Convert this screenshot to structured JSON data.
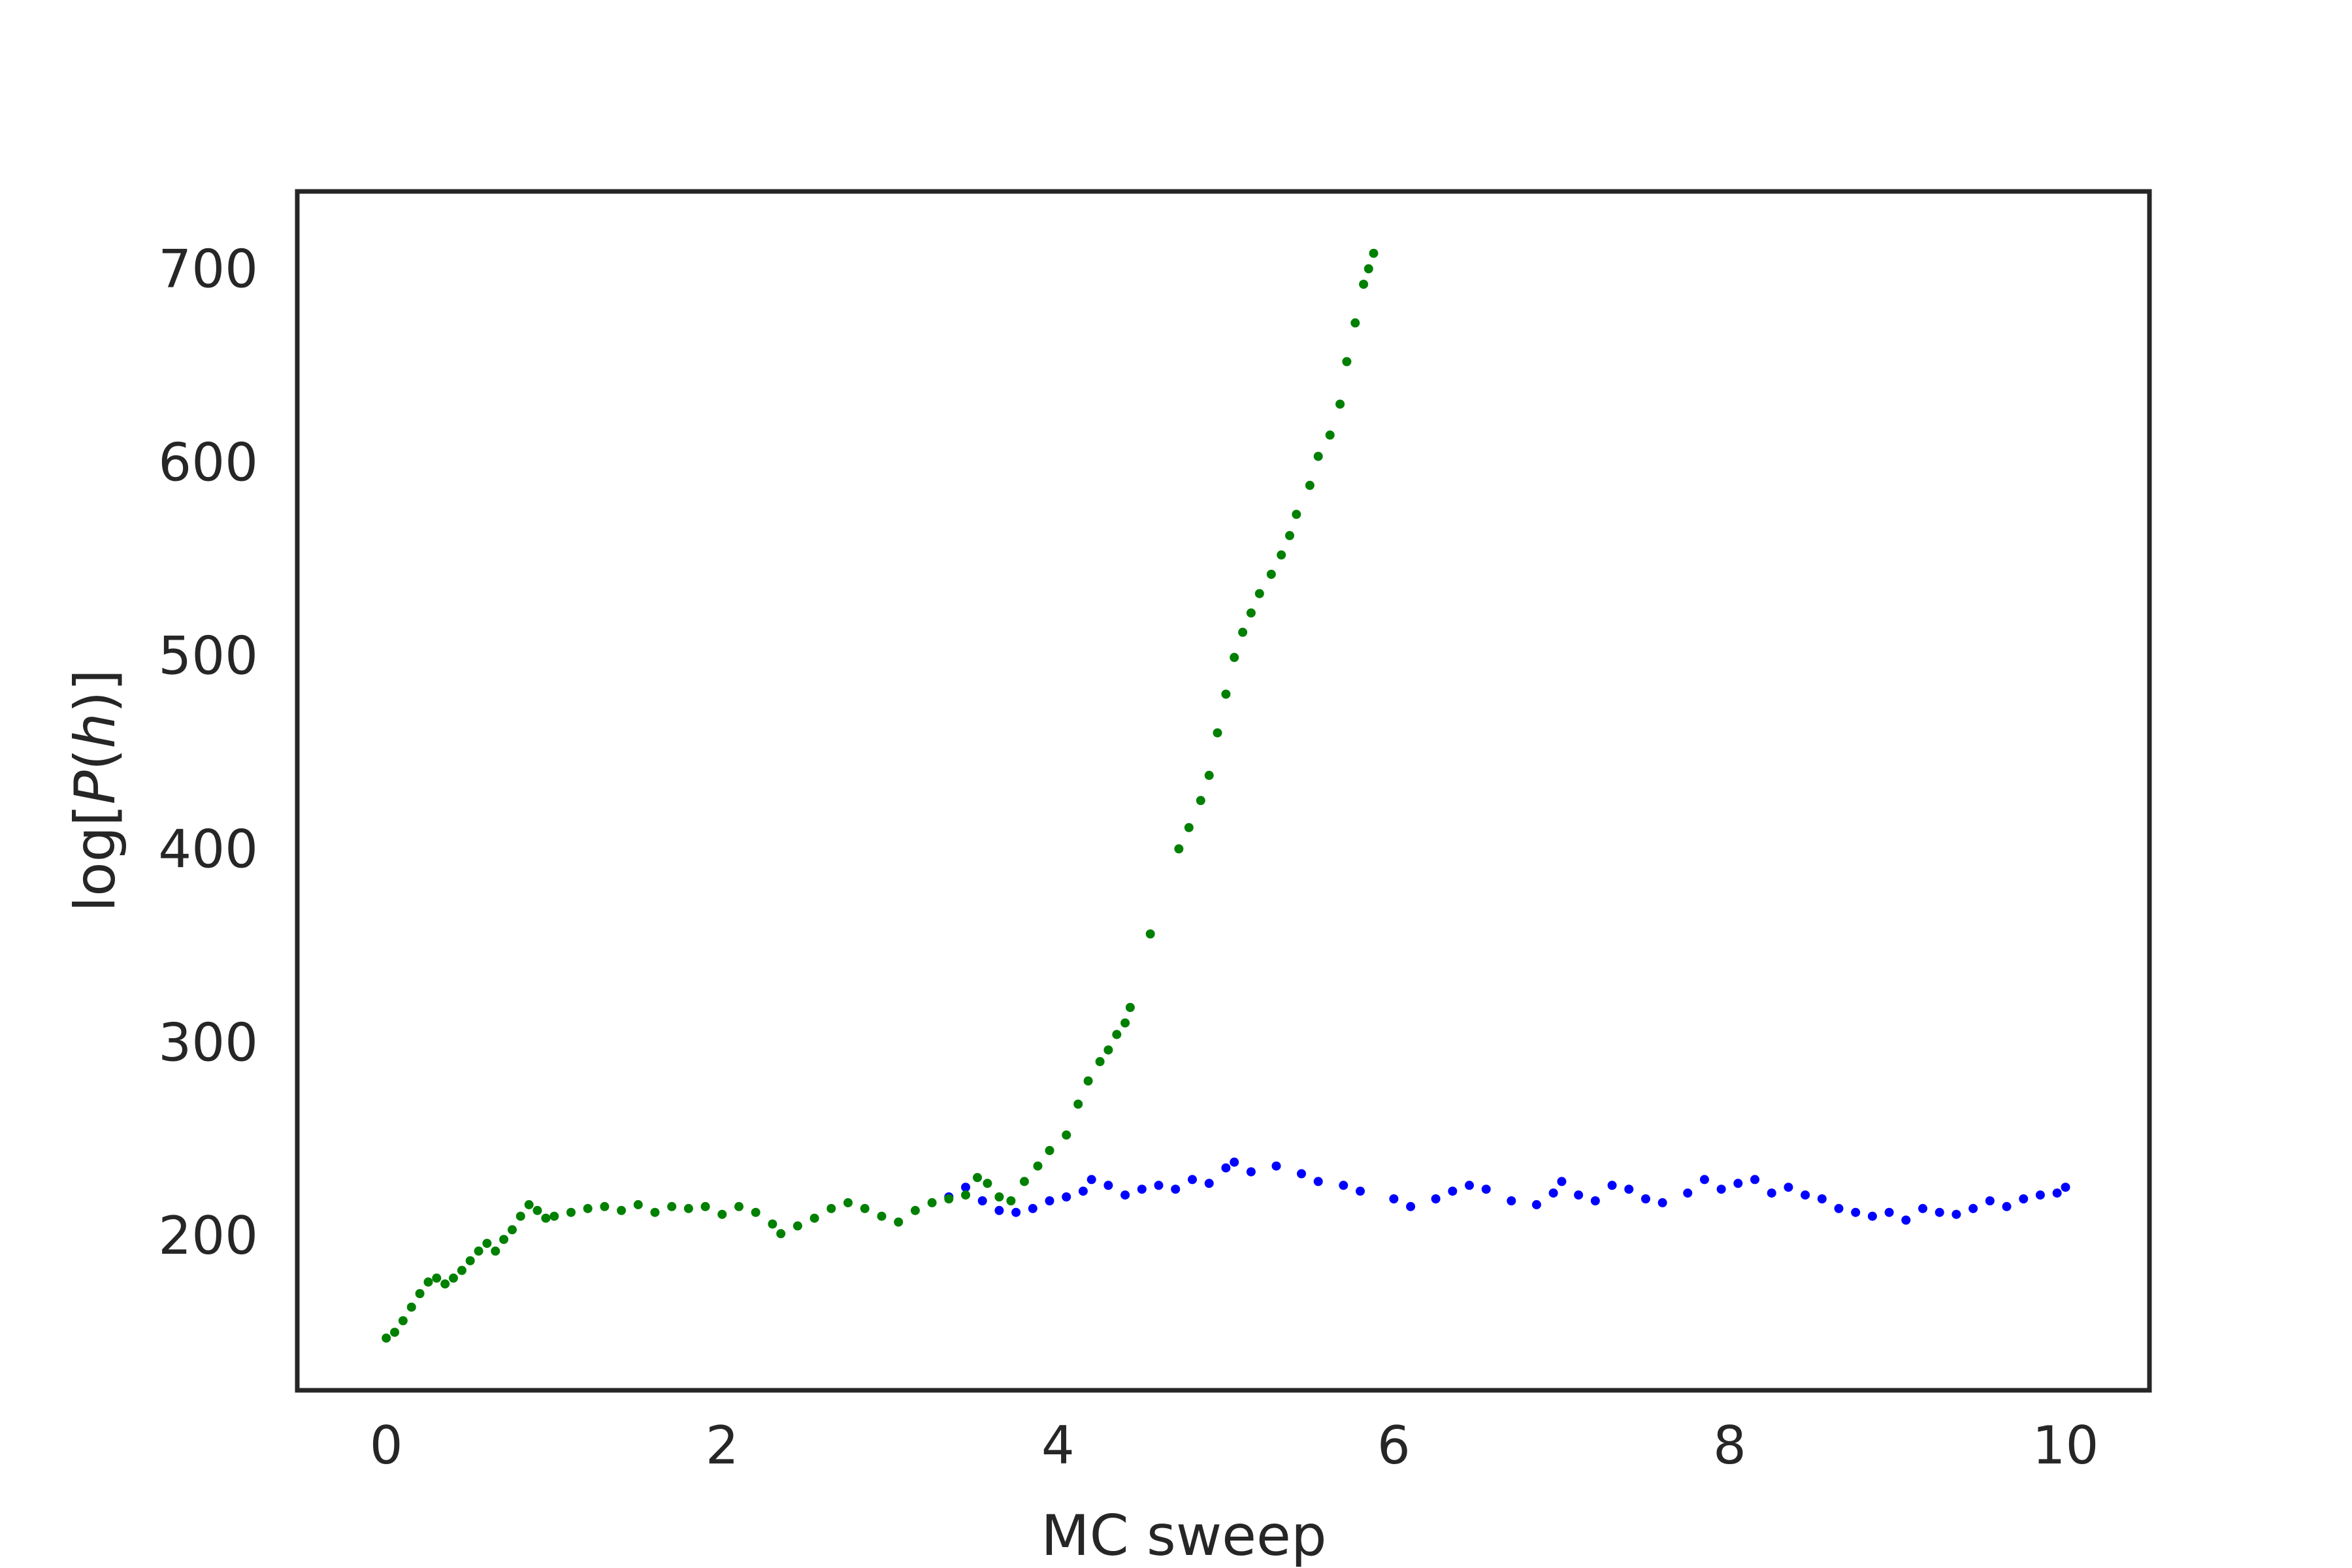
{
  "chart_data": {
    "type": "scatter",
    "title": "",
    "xlabel": "MC sweep",
    "ylabel_parts": {
      "prefix": "log[",
      "italic_p": "P",
      "open": "(",
      "italic_h": "h",
      "close": ")]"
    },
    "xlim": [
      -0.53,
      10.5
    ],
    "ylim": [
      120,
      740
    ],
    "xticks": [
      0,
      2,
      4,
      6,
      8,
      10
    ],
    "yticks": [
      200,
      300,
      400,
      500,
      600,
      700
    ],
    "xtick_labels": [
      "0",
      "2",
      "4",
      "6",
      "8",
      "10"
    ],
    "ytick_labels": [
      "200",
      "300",
      "400",
      "500",
      "600",
      "700"
    ],
    "grid": false,
    "legend": "none",
    "series": [
      {
        "color": "#0000ff",
        "points": [
          [
            3.35,
            220
          ],
          [
            3.45,
            225
          ],
          [
            3.55,
            218
          ],
          [
            3.65,
            213
          ],
          [
            3.75,
            212
          ],
          [
            3.85,
            214
          ],
          [
            3.95,
            218
          ],
          [
            4.05,
            220
          ],
          [
            4.15,
            223
          ],
          [
            4.2,
            229
          ],
          [
            4.3,
            226
          ],
          [
            4.4,
            221
          ],
          [
            4.5,
            224
          ],
          [
            4.6,
            226
          ],
          [
            4.7,
            224
          ],
          [
            4.8,
            229
          ],
          [
            4.9,
            227
          ],
          [
            5.0,
            235
          ],
          [
            5.05,
            238
          ],
          [
            5.15,
            233
          ],
          [
            5.3,
            236
          ],
          [
            5.45,
            232
          ],
          [
            5.55,
            228
          ],
          [
            5.7,
            226
          ],
          [
            5.8,
            223
          ],
          [
            6.0,
            219
          ],
          [
            6.1,
            215
          ],
          [
            6.25,
            219
          ],
          [
            6.35,
            223
          ],
          [
            6.45,
            226
          ],
          [
            6.55,
            224
          ],
          [
            6.7,
            218
          ],
          [
            6.85,
            216
          ],
          [
            6.95,
            222
          ],
          [
            7.0,
            228
          ],
          [
            7.1,
            221
          ],
          [
            7.2,
            218
          ],
          [
            7.3,
            226
          ],
          [
            7.4,
            224
          ],
          [
            7.5,
            219
          ],
          [
            7.6,
            217
          ],
          [
            7.75,
            222
          ],
          [
            7.85,
            229
          ],
          [
            7.95,
            224
          ],
          [
            8.05,
            227
          ],
          [
            8.15,
            229
          ],
          [
            8.25,
            222
          ],
          [
            8.35,
            225
          ],
          [
            8.45,
            221
          ],
          [
            8.55,
            219
          ],
          [
            8.65,
            214
          ],
          [
            8.75,
            212
          ],
          [
            8.85,
            210
          ],
          [
            8.95,
            212
          ],
          [
            9.05,
            208
          ],
          [
            9.15,
            214
          ],
          [
            9.25,
            212
          ],
          [
            9.35,
            211
          ],
          [
            9.45,
            214
          ],
          [
            9.55,
            218
          ],
          [
            9.65,
            215
          ],
          [
            9.75,
            219
          ],
          [
            9.85,
            221
          ],
          [
            9.95,
            222
          ],
          [
            10.0,
            225
          ]
        ]
      },
      {
        "color": "#008000",
        "points": [
          [
            0.0,
            147
          ],
          [
            0.05,
            150
          ],
          [
            0.1,
            156
          ],
          [
            0.15,
            163
          ],
          [
            0.2,
            170
          ],
          [
            0.25,
            176
          ],
          [
            0.3,
            178
          ],
          [
            0.35,
            175
          ],
          [
            0.4,
            178
          ],
          [
            0.45,
            182
          ],
          [
            0.5,
            187
          ],
          [
            0.55,
            192
          ],
          [
            0.6,
            196
          ],
          [
            0.65,
            192
          ],
          [
            0.7,
            198
          ],
          [
            0.75,
            203
          ],
          [
            0.8,
            210
          ],
          [
            0.85,
            216
          ],
          [
            0.9,
            213
          ],
          [
            0.95,
            209
          ],
          [
            1.0,
            210
          ],
          [
            1.1,
            212
          ],
          [
            1.2,
            214
          ],
          [
            1.3,
            215
          ],
          [
            1.4,
            213
          ],
          [
            1.5,
            216
          ],
          [
            1.6,
            212
          ],
          [
            1.7,
            215
          ],
          [
            1.8,
            214
          ],
          [
            1.9,
            215
          ],
          [
            2.0,
            211
          ],
          [
            2.1,
            215
          ],
          [
            2.2,
            212
          ],
          [
            2.3,
            206
          ],
          [
            2.35,
            201
          ],
          [
            2.45,
            205
          ],
          [
            2.55,
            209
          ],
          [
            2.65,
            214
          ],
          [
            2.75,
            217
          ],
          [
            2.85,
            214
          ],
          [
            2.95,
            210
          ],
          [
            3.05,
            207
          ],
          [
            3.15,
            213
          ],
          [
            3.25,
            217
          ],
          [
            3.35,
            219
          ],
          [
            3.45,
            221
          ],
          [
            3.52,
            230
          ],
          [
            3.58,
            227
          ],
          [
            3.65,
            220
          ],
          [
            3.72,
            218
          ],
          [
            3.8,
            228
          ],
          [
            3.88,
            236
          ],
          [
            3.95,
            244
          ],
          [
            4.05,
            252
          ],
          [
            4.12,
            268
          ],
          [
            4.18,
            280
          ],
          [
            4.25,
            290
          ],
          [
            4.3,
            296
          ],
          [
            4.35,
            304
          ],
          [
            4.4,
            310
          ],
          [
            4.43,
            318
          ],
          [
            4.55,
            356
          ],
          [
            4.72,
            400
          ],
          [
            4.78,
            411
          ],
          [
            4.85,
            425
          ],
          [
            4.9,
            438
          ],
          [
            4.95,
            460
          ],
          [
            5.0,
            480
          ],
          [
            5.05,
            499
          ],
          [
            5.1,
            512
          ],
          [
            5.15,
            522
          ],
          [
            5.2,
            532
          ],
          [
            5.27,
            542
          ],
          [
            5.33,
            552
          ],
          [
            5.38,
            562
          ],
          [
            5.42,
            573
          ],
          [
            5.5,
            588
          ],
          [
            5.55,
            603
          ],
          [
            5.62,
            614
          ],
          [
            5.68,
            630
          ],
          [
            5.72,
            652
          ],
          [
            5.77,
            672
          ],
          [
            5.82,
            692
          ],
          [
            5.85,
            700
          ],
          [
            5.88,
            708
          ]
        ]
      }
    ]
  }
}
